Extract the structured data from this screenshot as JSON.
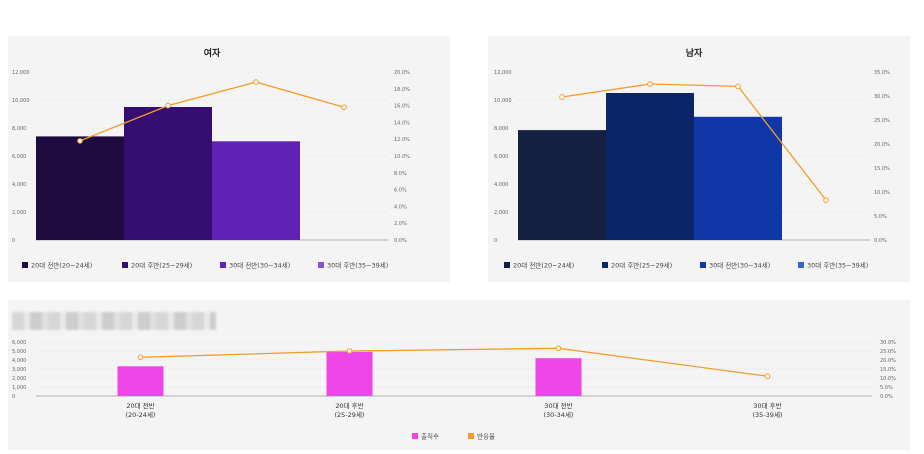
{
  "colors": {
    "line": "#f39c2a",
    "grid": "#d8d8d8",
    "female": [
      "#1e0b40",
      "#360e72",
      "#6022b5",
      "#8a50d6"
    ],
    "male": [
      "#13203f",
      "#0c2566",
      "#0f37a8",
      "#3564cf"
    ],
    "bottom_bar": "#ee44e8"
  },
  "chart_data": [
    {
      "id": "female",
      "type": "bar+line",
      "title": "여자",
      "categories": [
        "20대 전반(20~24세)",
        "20대 후반(25~29세)",
        "30대 전반(30~34세)",
        "30대 후반(35~39세)"
      ],
      "bar_values": [
        7400,
        9500,
        7050,
        0
      ],
      "line_values": [
        11.8,
        16.0,
        18.8,
        15.8
      ],
      "y_left_ticks": [
        "0",
        "2,000",
        "4,000",
        "6,000",
        "8,000",
        "10,000",
        "12,000"
      ],
      "y_left_range": [
        0,
        12000
      ],
      "y_right_ticks": [
        "0.0%",
        "2.0%",
        "4.0%",
        "6.0%",
        "8.0%",
        "10.0%",
        "12.0%",
        "14.0%",
        "16.0%",
        "18.0%",
        "20.0%"
      ],
      "y_right_range": [
        0,
        20
      ],
      "legend": [
        "20대 전반(20~24세)",
        "20대 후반(25~29세)",
        "30대 전반(30~34세)",
        "30대 후반(35~39세)"
      ]
    },
    {
      "id": "male",
      "type": "bar+line",
      "title": "남자",
      "categories": [
        "20대 전반(20~24세)",
        "20대 후반(25~29세)",
        "30대 전반(30~34세)",
        "30대 후반(35~39세)"
      ],
      "bar_values": [
        7850,
        10500,
        8800,
        0
      ],
      "line_values": [
        29.8,
        32.5,
        32.0,
        8.3
      ],
      "y_left_ticks": [
        "0",
        "2,000",
        "4,000",
        "6,000",
        "8,000",
        "10,000",
        "12,000"
      ],
      "y_left_range": [
        0,
        12000
      ],
      "y_right_ticks": [
        "0.0%",
        "5.0%",
        "10.0%",
        "15.0%",
        "20.0%",
        "25.0%",
        "30.0%",
        "35.0%"
      ],
      "y_right_range": [
        0,
        35
      ],
      "legend": [
        "20대 전반(20~24세)",
        "20대 후반(25~29세)",
        "30대 전반(30~34세)",
        "30대 후반(35~39세)"
      ]
    },
    {
      "id": "bottom",
      "type": "bar+line",
      "title": "",
      "categories": [
        [
          "20대 전반",
          "(20-24세)"
        ],
        [
          "20대 후반",
          "(25-29세)"
        ],
        [
          "30대 전반",
          "(30-34세)"
        ],
        [
          "30대 후반",
          "(35-39세)"
        ]
      ],
      "bar_values": [
        3300,
        4900,
        4200,
        0
      ],
      "line_values": [
        21.5,
        25.0,
        26.5,
        11.0
      ],
      "y_left_ticks": [
        "0",
        "1,000",
        "2,000",
        "3,000",
        "4,000",
        "5,000",
        "6,000"
      ],
      "y_left_range": [
        0,
        6000
      ],
      "y_right_ticks": [
        "0.0%",
        "5.0%",
        "10.0%",
        "15.0%",
        "20.0%",
        "25.0%",
        "30.0%"
      ],
      "y_right_range": [
        0,
        30
      ],
      "legend": [
        "출직수",
        "반응율"
      ]
    }
  ]
}
